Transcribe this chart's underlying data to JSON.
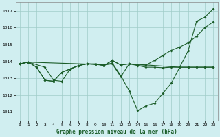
{
  "title": "Graphe pression niveau de la mer (hPa)",
  "bg_color": "#d0eef0",
  "grid_color": "#a0ccc8",
  "line_color": "#1a5c28",
  "xlim": [
    -0.5,
    23.5
  ],
  "ylim": [
    1010.5,
    1017.5
  ],
  "yticks": [
    1011,
    1012,
    1013,
    1014,
    1015,
    1016,
    1017
  ],
  "xticks": [
    0,
    1,
    2,
    3,
    4,
    5,
    6,
    7,
    8,
    9,
    10,
    11,
    12,
    13,
    14,
    15,
    16,
    17,
    18,
    19,
    20,
    21,
    22,
    23
  ],
  "line1_x": [
    0,
    1,
    2,
    3,
    4,
    5,
    6,
    7,
    8,
    9,
    10,
    11,
    12,
    13,
    14,
    15,
    16,
    17,
    18,
    19,
    20,
    21,
    22,
    23
  ],
  "line1_y": [
    1013.85,
    1013.95,
    1013.65,
    1012.88,
    1012.82,
    1013.35,
    1013.55,
    1013.75,
    1013.85,
    1013.82,
    1013.78,
    1013.85,
    1013.08,
    1013.85,
    1013.75,
    1013.65,
    1013.65,
    1013.62,
    1013.65,
    1013.65,
    1013.65,
    1013.65,
    1013.65,
    1013.65
  ],
  "line2_x": [
    0,
    1,
    3,
    4,
    5,
    6,
    7,
    8,
    9,
    10,
    11,
    12,
    13,
    14,
    15,
    16,
    17,
    18,
    19,
    20,
    21,
    22,
    23
  ],
  "line2_y": [
    1013.85,
    1013.95,
    1013.65,
    1012.88,
    1012.82,
    1013.55,
    1013.75,
    1013.85,
    1013.85,
    1013.75,
    1014.05,
    1013.78,
    1013.85,
    1013.78,
    1013.78,
    1014.05,
    1014.35,
    1014.65,
    1014.85,
    1015.1,
    1015.5,
    1016.0,
    1016.35
  ],
  "line3_x": [
    0,
    1,
    2,
    3,
    4,
    5,
    6,
    7,
    8,
    9,
    10,
    11,
    12,
    13,
    14,
    15,
    16,
    17,
    18,
    19,
    20,
    21,
    22,
    23
  ],
  "line3_y": [
    1013.85,
    1013.95,
    1013.65,
    1012.88,
    1012.82,
    1013.35,
    1013.55,
    1013.75,
    1013.85,
    1013.82,
    1013.78,
    1013.9,
    1013.15,
    1012.25,
    1011.08,
    1011.35,
    1011.5,
    1012.1,
    1012.7,
    1013.65,
    1014.62,
    1016.38,
    1016.62,
    1017.12
  ],
  "line4_x": [
    0,
    1,
    9,
    10,
    11,
    12,
    13,
    19,
    20,
    21,
    22,
    23
  ],
  "line4_y": [
    1013.85,
    1013.95,
    1013.82,
    1013.75,
    1014.05,
    1013.78,
    1013.85,
    1013.65,
    1013.65,
    1013.65,
    1013.65,
    1013.65
  ]
}
